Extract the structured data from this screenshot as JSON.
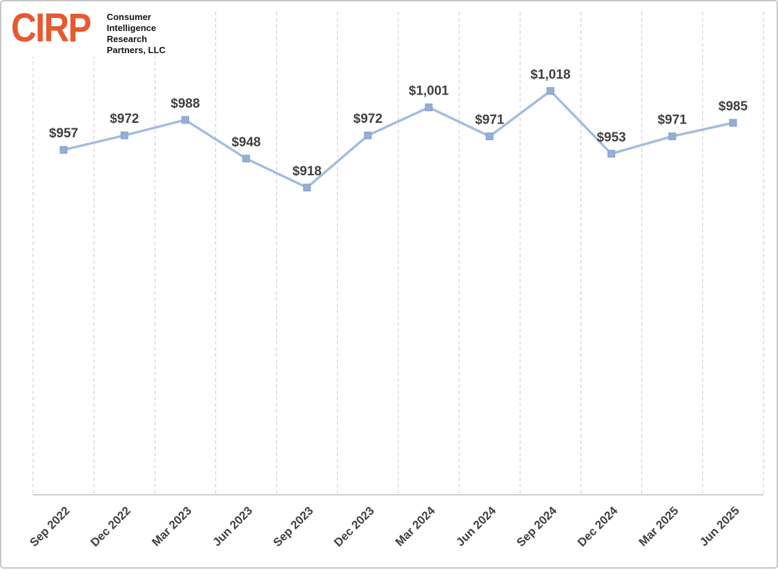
{
  "logo": {
    "abbr": "CIRP",
    "lines": [
      "Consumer",
      "Intelligence",
      "Research",
      "Partners, LLC"
    ]
  },
  "colors": {
    "logo_orange": "#e8582e",
    "line": "#a3bcdf",
    "marker": "#94afd7",
    "marker_edge": "#7f9cc7",
    "grid": "#c9c9c9",
    "axis": "#bdbdbd",
    "label_text": "#3f3f3f",
    "border": "#c6c6c6"
  },
  "chart_data": {
    "type": "line",
    "categories": [
      "Sep 2022",
      "Dec 2022",
      "Mar 2023",
      "Jun 2023",
      "Sep 2023",
      "Dec 2023",
      "Mar 2024",
      "Jun 2024",
      "Sep 2024",
      "Dec 2024",
      "Mar 2025",
      "Jun 2025"
    ],
    "values": [
      957,
      972,
      988,
      948,
      918,
      972,
      1001,
      971,
      1018,
      953,
      971,
      985
    ],
    "point_labels": [
      "$957",
      "$972",
      "$988",
      "$948",
      "$918",
      "$972",
      "$1,001",
      "$971",
      "$1,018",
      "$953",
      "$971",
      "$985"
    ],
    "title": "",
    "xlabel": "",
    "ylabel": "",
    "ylim": [
      600,
      1100
    ],
    "grid": "vertical-dashed",
    "legend": "none",
    "marker": "square",
    "x_label_rotation": -45
  }
}
